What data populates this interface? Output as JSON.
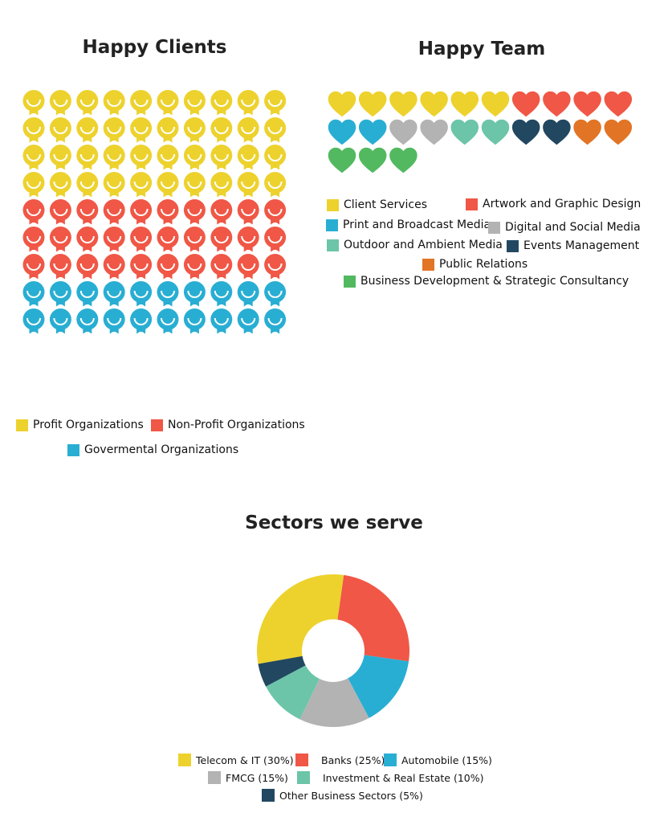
{
  "colors": {
    "yellow": "#EDD22E",
    "red": "#F05746",
    "blue": "#29AED3",
    "gray": "#B3B3B3",
    "teal": "#6CC5A8",
    "navy": "#224761",
    "orange": "#E27425",
    "green": "#52B960"
  },
  "happy_clients": {
    "title": "Happy Clients",
    "grid": {
      "columns": 10,
      "rows": 9,
      "row_colors": [
        "yellow",
        "yellow",
        "yellow",
        "yellow",
        "red",
        "red",
        "red",
        "blue",
        "blue"
      ]
    },
    "legend": [
      {
        "label": "Profit Organizations",
        "color": "yellow"
      },
      {
        "label": "Non-Profit Organizations",
        "color": "red"
      },
      {
        "label": "Govermental Organizations",
        "color": "blue"
      }
    ]
  },
  "happy_team": {
    "title": "Happy Team",
    "hearts": [
      "yellow",
      "yellow",
      "yellow",
      "yellow",
      "yellow",
      "yellow",
      "red",
      "red",
      "red",
      "red",
      "blue",
      "blue",
      "gray",
      "gray",
      "teal",
      "teal",
      "navy",
      "navy",
      "orange",
      "orange",
      "green",
      "green",
      "green"
    ],
    "legend": [
      {
        "label": "Client Services",
        "color": "yellow"
      },
      {
        "label": "Artwork and Graphic Design",
        "color": "red"
      },
      {
        "label": "Print and Broadcast Media",
        "color": "blue"
      },
      {
        "label": "Digital and Social Media",
        "color": "gray"
      },
      {
        "label": "Outdoor and Ambient Media",
        "color": "teal"
      },
      {
        "label": "Events Management",
        "color": "navy"
      },
      {
        "label": "Public Relations",
        "color": "orange"
      },
      {
        "label": "Business Development & Strategic Consultancy",
        "color": "green"
      }
    ]
  },
  "sectors": {
    "title": "Sectors we serve",
    "legend": [
      {
        "label": "Telecom & IT (30%)",
        "color": "yellow"
      },
      {
        "label": "Banks (25%)",
        "color": "red"
      },
      {
        "label": "Automobile (15%)",
        "color": "blue"
      },
      {
        "label": "FMCG (15%)",
        "color": "gray"
      },
      {
        "label": "Investment & Real Estate (10%)",
        "color": "teal"
      },
      {
        "label": "Other Business Sectors (5%)",
        "color": "navy"
      }
    ]
  },
  "chart_data": [
    {
      "type": "pictogram",
      "title": "Happy Clients",
      "categories": [
        "Profit Organizations",
        "Non-Profit Organizations",
        "Govermental Organizations"
      ],
      "values": [
        40,
        30,
        20
      ],
      "unit": "icons (smiley)",
      "layout": "10 columns x 9 rows"
    },
    {
      "type": "pictogram",
      "title": "Happy Team",
      "categories": [
        "Client Services",
        "Artwork and Graphic Design",
        "Print and Broadcast Media",
        "Digital and Social Media",
        "Outdoor and Ambient Media",
        "Events Management",
        "Public Relations",
        "Business Development & Strategic Consultancy"
      ],
      "values": [
        6,
        4,
        2,
        2,
        2,
        2,
        2,
        3
      ],
      "unit": "hearts"
    },
    {
      "type": "pie",
      "subtype": "donut",
      "title": "Sectors we serve",
      "categories": [
        "Telecom & IT",
        "Banks",
        "Automobile",
        "FMCG",
        "Investment & Real Estate",
        "Other Business Sectors"
      ],
      "values": [
        30,
        25,
        15,
        15,
        10,
        5
      ],
      "unit": "%",
      "legend_position": "bottom"
    }
  ]
}
